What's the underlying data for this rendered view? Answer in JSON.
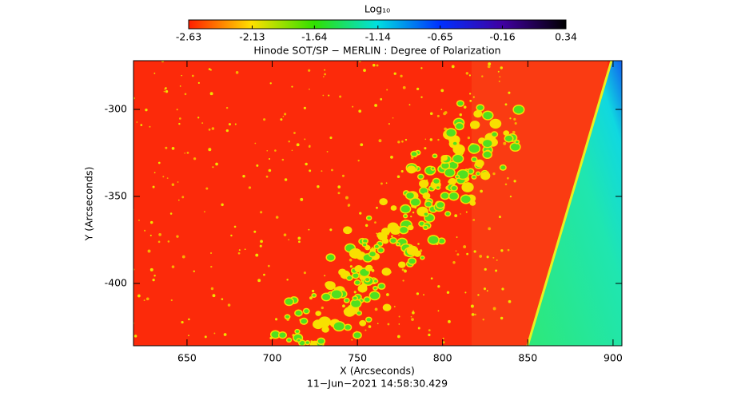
{
  "chart_data": {
    "type": "image",
    "title": "Hinode SOT/SP − MERLIN : Degree of Polarization",
    "x_label": "X (Arcseconds)",
    "y_label": "Y (Arcseconds)",
    "footnote": "11−Jun−2021 14:58:30.429",
    "xlim": [
      618.6,
      905.2
    ],
    "xticks": [
      650,
      700,
      750,
      800,
      850,
      900
    ],
    "ylim": [
      -435.8,
      -272
    ],
    "yticks": [
      -400,
      -350,
      -300
    ],
    "colorbar": {
      "label": "Log₁₀",
      "clim": [
        -2.63,
        0.34
      ],
      "ticks": [
        -2.63,
        -2.13,
        -1.64,
        -1.14,
        -0.65,
        -0.16,
        0.34
      ],
      "colormap": [
        "#ff1e00",
        "#ffe000",
        "#30e000",
        "#00e0e0",
        "#0030ff",
        "#4000a0",
        "#000000"
      ]
    }
  }
}
